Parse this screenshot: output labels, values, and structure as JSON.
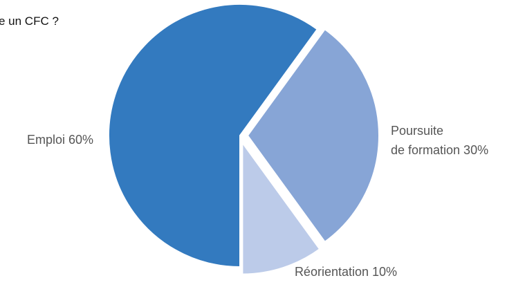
{
  "chart_data": {
    "type": "pie",
    "title": "e un CFC ?",
    "slices": [
      {
        "label_lines": [
          "Emploi 60%"
        ],
        "value": 60,
        "color": "#337abf"
      },
      {
        "label_lines": [
          "Poursuite",
          "de formation 30%"
        ],
        "value": 30,
        "color": "#87a5d6"
      },
      {
        "label_lines": [
          "Réorientation 10%"
        ],
        "value": 10,
        "color": "#bccbe9"
      }
    ]
  }
}
